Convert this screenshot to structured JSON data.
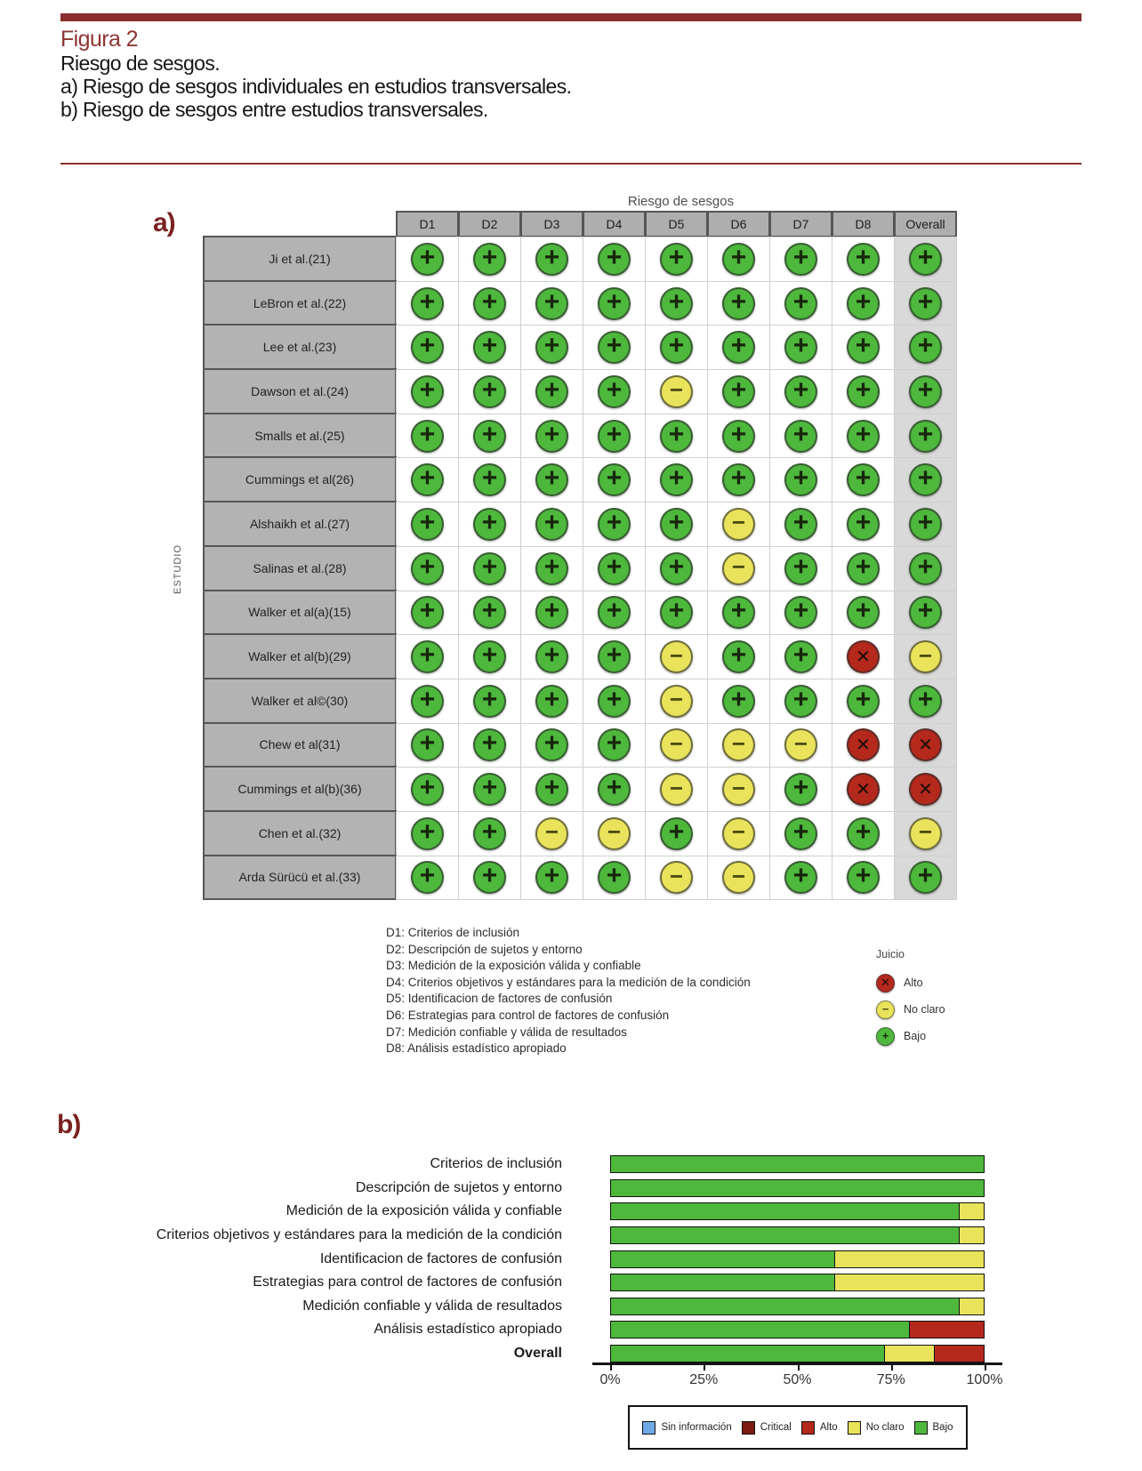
{
  "header": {
    "figure_label": "Figura 2",
    "caption_lines": [
      "Riesgo de sesgos.",
      "a) Riesgo de sesgos individuales en estudios transversales.",
      "b) Riesgo de sesgos entre estudios transversales."
    ]
  },
  "colors": {
    "maroon": "#8a2e2e",
    "low": "#4db83c",
    "unclear": "#e9e35b",
    "high": "#b5281c",
    "critical": "#7d1a12",
    "no_info": "#6fa8e6"
  },
  "panel_a": {
    "label": "a)",
    "title": "Riesgo de sesgos",
    "y_axis_label": "ESTUDIO",
    "columns": [
      "D1",
      "D2",
      "D3",
      "D4",
      "D5",
      "D6",
      "D7",
      "D8",
      "Overall"
    ],
    "symbol_meaning": {
      "+": "Bajo",
      "-": "No claro",
      "x": "Alto"
    },
    "rows": [
      {
        "study": "Ji et al.(21)",
        "judgments": [
          "+",
          "+",
          "+",
          "+",
          "+",
          "+",
          "+",
          "+",
          "+"
        ]
      },
      {
        "study": "LeBron et al.(22)",
        "judgments": [
          "+",
          "+",
          "+",
          "+",
          "+",
          "+",
          "+",
          "+",
          "+"
        ]
      },
      {
        "study": "Lee et al.(23)",
        "judgments": [
          "+",
          "+",
          "+",
          "+",
          "+",
          "+",
          "+",
          "+",
          "+"
        ]
      },
      {
        "study": "Dawson et al.(24)",
        "judgments": [
          "+",
          "+",
          "+",
          "+",
          "-",
          "+",
          "+",
          "+",
          "+"
        ]
      },
      {
        "study": "Smalls et al.(25)",
        "judgments": [
          "+",
          "+",
          "+",
          "+",
          "+",
          "+",
          "+",
          "+",
          "+"
        ]
      },
      {
        "study": "Cummings et al(26)",
        "judgments": [
          "+",
          "+",
          "+",
          "+",
          "+",
          "+",
          "+",
          "+",
          "+"
        ]
      },
      {
        "study": "Alshaikh et al.(27)",
        "judgments": [
          "+",
          "+",
          "+",
          "+",
          "+",
          "-",
          "+",
          "+",
          "+"
        ]
      },
      {
        "study": "Salinas et al.(28)",
        "judgments": [
          "+",
          "+",
          "+",
          "+",
          "+",
          "-",
          "+",
          "+",
          "+"
        ]
      },
      {
        "study": "Walker et al(a)(15)",
        "judgments": [
          "+",
          "+",
          "+",
          "+",
          "+",
          "+",
          "+",
          "+",
          "+"
        ]
      },
      {
        "study": "Walker et al(b)(29)",
        "judgments": [
          "+",
          "+",
          "+",
          "+",
          "-",
          "+",
          "+",
          "x",
          "-"
        ]
      },
      {
        "study": "Walker et al©(30)",
        "judgments": [
          "+",
          "+",
          "+",
          "+",
          "-",
          "+",
          "+",
          "+",
          "+"
        ]
      },
      {
        "study": "Chew et al(31)",
        "judgments": [
          "+",
          "+",
          "+",
          "+",
          "-",
          "-",
          "-",
          "x",
          "x"
        ]
      },
      {
        "study": "Cummings et al(b)(36)",
        "judgments": [
          "+",
          "+",
          "+",
          "+",
          "-",
          "-",
          "+",
          "x",
          "x"
        ]
      },
      {
        "study": "Chen et al.(32)",
        "judgments": [
          "+",
          "+",
          "-",
          "-",
          "+",
          "-",
          "+",
          "+",
          "-"
        ]
      },
      {
        "study": "Arda Sürücü et al.(33)",
        "judgments": [
          "+",
          "+",
          "+",
          "+",
          "-",
          "-",
          "+",
          "+",
          "+"
        ]
      }
    ],
    "definitions": [
      "D1: Criterios de inclusión",
      "D2: Descripción de sujetos y entorno",
      "D3: Medición de la exposición válida y confiable",
      "D4: Criterios objetivos y estándares para la medición  de la condición",
      "D5: Identificacion de factores de confusión",
      "D6: Estrategias para control de factores de confusión",
      "D7: Medición confiable y válida de resultados",
      "D8: Análisis estadístico apropiado"
    ],
    "judgment_legend": {
      "title": "Juicio",
      "items": [
        {
          "label": "Alto",
          "symbol": "x",
          "color_key": "high"
        },
        {
          "label": "No claro",
          "symbol": "-",
          "color_key": "unclear"
        },
        {
          "label": "Bajo",
          "symbol": "+",
          "color_key": "low"
        }
      ]
    }
  },
  "panel_b": {
    "label": "b)",
    "x_ticks": [
      "0%",
      "25%",
      "50%",
      "75%",
      "100%"
    ],
    "legend": [
      {
        "label": "Sin información",
        "color_key": "no_info"
      },
      {
        "label": "Critical",
        "color_key": "critical"
      },
      {
        "label": "Alto",
        "color_key": "high"
      },
      {
        "label": "No claro",
        "color_key": "unclear"
      },
      {
        "label": "Bajo",
        "color_key": "low"
      }
    ]
  },
  "chart_data": [
    {
      "type": "heatmap",
      "title": "Riesgo de sesgos",
      "ylabel": "ESTUDIO",
      "domains": [
        "D1",
        "D2",
        "D3",
        "D4",
        "D5",
        "D6",
        "D7",
        "D8",
        "Overall"
      ],
      "studies": [
        "Ji et al.(21)",
        "LeBron et al.(22)",
        "Lee et al.(23)",
        "Dawson et al.(24)",
        "Smalls et al.(25)",
        "Cummings et al(26)",
        "Alshaikh et al.(27)",
        "Salinas et al.(28)",
        "Walker et al(a)(15)",
        "Walker et al(b)(29)",
        "Walker et al©(30)",
        "Chew et al(31)",
        "Cummings et al(b)(36)",
        "Chen et al.(32)",
        "Arda Sürücü et al.(33)"
      ],
      "legend": {
        "x": "Alto",
        "-": "No claro",
        "+": "Bajo"
      },
      "judgments": [
        [
          "+",
          "+",
          "+",
          "+",
          "+",
          "+",
          "+",
          "+",
          "+"
        ],
        [
          "+",
          "+",
          "+",
          "+",
          "+",
          "+",
          "+",
          "+",
          "+"
        ],
        [
          "+",
          "+",
          "+",
          "+",
          "+",
          "+",
          "+",
          "+",
          "+"
        ],
        [
          "+",
          "+",
          "+",
          "+",
          "-",
          "+",
          "+",
          "+",
          "+"
        ],
        [
          "+",
          "+",
          "+",
          "+",
          "+",
          "+",
          "+",
          "+",
          "+"
        ],
        [
          "+",
          "+",
          "+",
          "+",
          "+",
          "+",
          "+",
          "+",
          "+"
        ],
        [
          "+",
          "+",
          "+",
          "+",
          "+",
          "-",
          "+",
          "+",
          "+"
        ],
        [
          "+",
          "+",
          "+",
          "+",
          "+",
          "-",
          "+",
          "+",
          "+"
        ],
        [
          "+",
          "+",
          "+",
          "+",
          "+",
          "+",
          "+",
          "+",
          "+"
        ],
        [
          "+",
          "+",
          "+",
          "+",
          "-",
          "+",
          "+",
          "x",
          "-"
        ],
        [
          "+",
          "+",
          "+",
          "+",
          "-",
          "+",
          "+",
          "+",
          "+"
        ],
        [
          "+",
          "+",
          "+",
          "+",
          "-",
          "-",
          "-",
          "x",
          "x"
        ],
        [
          "+",
          "+",
          "+",
          "+",
          "-",
          "-",
          "+",
          "x",
          "x"
        ],
        [
          "+",
          "+",
          "-",
          "-",
          "+",
          "-",
          "+",
          "+",
          "-"
        ],
        [
          "+",
          "+",
          "+",
          "+",
          "-",
          "-",
          "+",
          "+",
          "+"
        ]
      ]
    },
    {
      "type": "bar",
      "orientation": "horizontal",
      "stacked": true,
      "categories": [
        "Criterios de inclusión",
        "Descripción de sujetos y entorno",
        "Medición de la exposición válida y confiable",
        "Criterios objetivos y estándares para la medición  de la condición",
        "Identificacion de factores de confusión",
        "Estrategias para control de factores de confusión",
        "Medición confiable y válida de resultados",
        "Análisis estadístico apropiado",
        "Overall"
      ],
      "series": [
        {
          "name": "Bajo",
          "color_key": "low",
          "values": [
            100,
            100,
            93.3,
            93.3,
            60,
            60,
            93.3,
            80,
            73.3
          ]
        },
        {
          "name": "No claro",
          "color_key": "unclear",
          "values": [
            0,
            0,
            6.7,
            6.7,
            40,
            40,
            6.7,
            0,
            13.3
          ]
        },
        {
          "name": "Alto",
          "color_key": "high",
          "values": [
            0,
            0,
            0,
            0,
            0,
            0,
            0,
            20,
            13.3
          ]
        },
        {
          "name": "Critical",
          "color_key": "critical",
          "values": [
            0,
            0,
            0,
            0,
            0,
            0,
            0,
            0,
            0
          ]
        },
        {
          "name": "Sin información",
          "color_key": "no_info",
          "values": [
            0,
            0,
            0,
            0,
            0,
            0,
            0,
            0,
            0
          ]
        }
      ],
      "xlim": [
        0,
        100
      ],
      "x_tick_labels": [
        "0%",
        "25%",
        "50%",
        "75%",
        "100%"
      ],
      "legend_position": "bottom"
    }
  ]
}
